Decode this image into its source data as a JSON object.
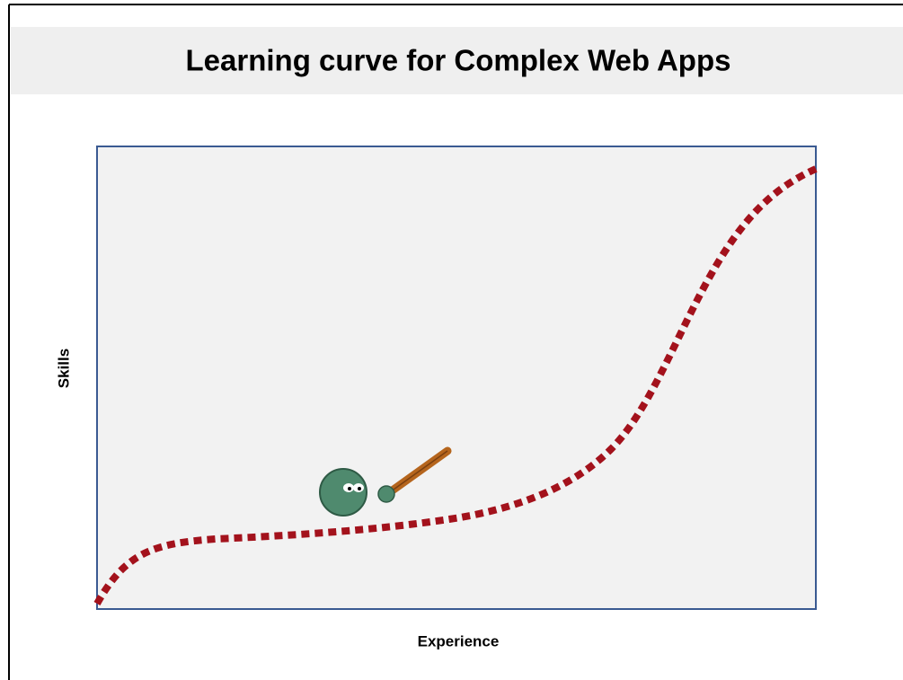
{
  "header": {
    "title": "Learning curve for Complex Web Apps"
  },
  "diagram": {
    "x_label": "Experience",
    "y_label": "Skills"
  }
}
